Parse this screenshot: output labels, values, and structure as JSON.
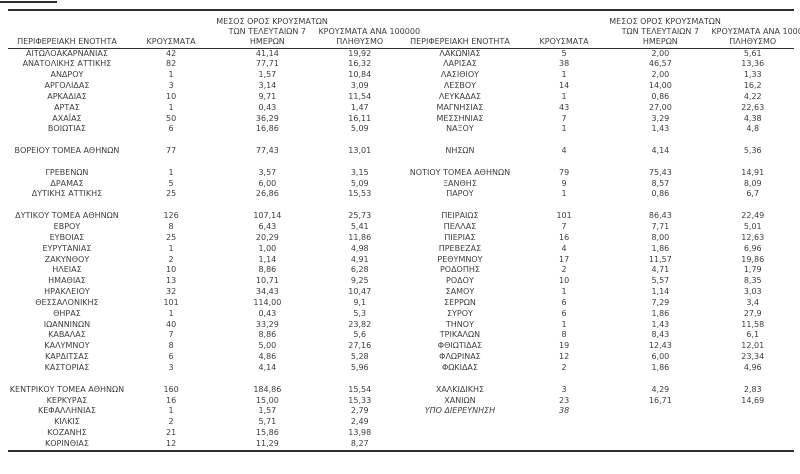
{
  "colors": {
    "background": "#ffffff",
    "text": "#3d3d3d",
    "line": "#2e2e2e"
  },
  "columns": {
    "region": "ΠΕΡΙΦΕΡΕΙΑΚΗ ΕΝΟΤΗΤΑ",
    "cases": "ΚΡΟΥΣΜΑΤΑ",
    "avg7_lines": [
      "ΜΕΣΟΣ ΟΡΟΣ ΚΡΟΥΣΜΑΤΩΝ",
      "ΤΩΝ ΤΕΛΕΥΤΑΙΩΝ 7",
      "ΗΜΕΡΩΝ"
    ],
    "per100k_lines": [
      "ΚΡΟΥΣΜΑΤΑ ΑΝΑ 100000",
      "ΠΛΗΘΥΣΜΟ"
    ]
  },
  "left_rows": [
    [
      "ΑΙΤΩΛΟΑΚΑΡΝΑΝΙΑΣ",
      "42",
      "41,14",
      "19,92"
    ],
    [
      "ΑΝΑΤΟΛΙΚΗΣ ΑΤΤΙΚΗΣ",
      "82",
      "77,71",
      "16,32"
    ],
    [
      "ΑΝΔΡΟΥ",
      "1",
      "1,57",
      "10,84"
    ],
    [
      "ΑΡΓΟΛΙΔΑΣ",
      "3",
      "3,14",
      "3,09"
    ],
    [
      "ΑΡΚΑΔΙΑΣ",
      "10",
      "9,71",
      "11,54"
    ],
    [
      "ΑΡΤΑΣ",
      "1",
      "0,43",
      "1,47"
    ],
    [
      "ΑΧΑΪΑΣ",
      "50",
      "36,29",
      "16,11"
    ],
    [
      "ΒΟΙΩΤΙΑΣ",
      "6",
      "16,86",
      "5,09"
    ],
    null,
    [
      "ΒΟΡΕΙΟΥ ΤΟΜΕΑ ΑΘΗΝΩΝ",
      "77",
      "77,43",
      "13,01"
    ],
    null,
    [
      "ΓΡΕΒΕΝΩΝ",
      "1",
      "3,57",
      "3,15"
    ],
    [
      "ΔΡΑΜΑΣ",
      "5",
      "6,00",
      "5,09"
    ],
    [
      "ΔΥΤΙΚΗΣ ΑΤΤΙΚΗΣ",
      "25",
      "26,86",
      "15,53"
    ],
    null,
    [
      "ΔΥΤΙΚΟΥ ΤΟΜΕΑ ΑΘΗΝΩΝ",
      "126",
      "107,14",
      "25,73"
    ],
    [
      "ΕΒΡΟΥ",
      "8",
      "6,43",
      "5,41"
    ],
    [
      "ΕΥΒΟΙΑΣ",
      "25",
      "20,29",
      "11,86"
    ],
    [
      "ΕΥΡΥΤΑΝΙΑΣ",
      "1",
      "1,00",
      "4,98"
    ],
    [
      "ΖΑΚΥΝΘΟΥ",
      "2",
      "1,14",
      "4,91"
    ],
    [
      "ΗΛΕΙΑΣ",
      "10",
      "8,86",
      "6,28"
    ],
    [
      "ΗΜΑΘΙΑΣ",
      "13",
      "10,71",
      "9,25"
    ],
    [
      "ΗΡΑΚΛΕΙΟΥ",
      "32",
      "34,43",
      "10,47"
    ],
    [
      "ΘΕΣΣΑΛΟΝΙΚΗΣ",
      "101",
      "114,00",
      "9,1"
    ],
    [
      "ΘΗΡΑΣ",
      "1",
      "0,43",
      "5,3"
    ],
    [
      "ΙΩΑΝΝΙΝΩΝ",
      "40",
      "33,29",
      "23,82"
    ],
    [
      "ΚΑΒΑΛΑΣ",
      "7",
      "8,86",
      "5,6"
    ],
    [
      "ΚΑΛΥΜΝΟΥ",
      "8",
      "5,00",
      "27,16"
    ],
    [
      "ΚΑΡΔΙΤΣΑΣ",
      "6",
      "4,86",
      "5,28"
    ],
    [
      "ΚΑΣΤΟΡΙΑΣ",
      "3",
      "4,14",
      "5,96"
    ],
    null,
    [
      "ΚΕΝΤΡΙΚΟΥ ΤΟΜΕΑ ΑΘΗΝΩΝ",
      "160",
      "184,86",
      "15,54"
    ],
    [
      "ΚΕΡΚΥΡΑΣ",
      "16",
      "15,00",
      "15,33"
    ],
    [
      "ΚΕΦΑΛΛΗΝΙΑΣ",
      "1",
      "1,57",
      "2,79"
    ],
    [
      "ΚΙΛΚΙΣ",
      "2",
      "5,71",
      "2,49"
    ],
    [
      "ΚΟΖΑΝΗΣ",
      "21",
      "15,86",
      "13,98"
    ],
    [
      "ΚΟΡΙΝΘΙΑΣ",
      "12",
      "11,29",
      "8,27"
    ]
  ],
  "right_rows": [
    [
      "ΛΑΚΩΝΙΑΣ",
      "5",
      "2,00",
      "5,61"
    ],
    [
      "ΛΑΡΙΣΑΣ",
      "38",
      "46,57",
      "13,36"
    ],
    [
      "ΛΑΣΙΘΙΟΥ",
      "1",
      "2,00",
      "1,33"
    ],
    [
      "ΛΕΣΒΟΥ",
      "14",
      "14,00",
      "16,2"
    ],
    [
      "ΛΕΥΚΑΔΑΣ",
      "1",
      "0,86",
      "4,22"
    ],
    [
      "ΜΑΓΝΗΣΙΑΣ",
      "43",
      "27,00",
      "22,63"
    ],
    [
      "ΜΕΣΣΗΝΙΑΣ",
      "7",
      "3,29",
      "4,38"
    ],
    [
      "ΝΑΞΟΥ",
      "1",
      "1,43",
      "4,8"
    ],
    null,
    [
      "ΝΗΣΩΝ",
      "4",
      "4,14",
      "5,36"
    ],
    null,
    [
      "ΝΟΤΙΟΥ ΤΟΜΕΑ ΑΘΗΝΩΝ",
      "79",
      "75,43",
      "14,91"
    ],
    [
      "ΞΑΝΘΗΣ",
      "9",
      "8,57",
      "8,09"
    ],
    [
      "ΠΑΡΟΥ",
      "1",
      "0,86",
      "6,7"
    ],
    null,
    [
      "ΠΕΙΡΑΙΩΣ",
      "101",
      "86,43",
      "22,49"
    ],
    [
      "ΠΕΛΛΑΣ",
      "7",
      "7,71",
      "5,01"
    ],
    [
      "ΠΙΕΡΙΑΣ",
      "16",
      "8,00",
      "12,63"
    ],
    [
      "ΠΡΕΒΕΖΑΣ",
      "4",
      "1,86",
      "6,96"
    ],
    [
      "ΡΕΘΥΜΝΟΥ",
      "17",
      "11,57",
      "19,86"
    ],
    [
      "ΡΟΔΟΠΗΣ",
      "2",
      "4,71",
      "1,79"
    ],
    [
      "ΡΟΔΟΥ",
      "10",
      "5,57",
      "8,35"
    ],
    [
      "ΣΑΜΟΥ",
      "1",
      "1,14",
      "3,03"
    ],
    [
      "ΣΕΡΡΩΝ",
      "6",
      "7,29",
      "3,4"
    ],
    [
      "ΣΥΡΟΥ",
      "6",
      "1,86",
      "27,9"
    ],
    [
      "ΤΗΝΟΥ",
      "1",
      "1,43",
      "11,58"
    ],
    [
      "ΤΡΙΚΑΛΩΝ",
      "8",
      "8,43",
      "6,1"
    ],
    [
      "ΦΘΙΩΤΙΔΑΣ",
      "19",
      "12,43",
      "12,01"
    ],
    [
      "ΦΛΩΡΙΝΑΣ",
      "12",
      "6,00",
      "23,34"
    ],
    [
      "ΦΩΚΙΔΑΣ",
      "2",
      "1,86",
      "4,96"
    ],
    null,
    [
      "ΧΑΛΚΙΔΙΚΗΣ",
      "3",
      "4,29",
      "2,83"
    ],
    [
      "ΧΑΝΙΩΝ",
      "23",
      "16,71",
      "14,69"
    ],
    [
      "ΥΠΟ ΔΙΕΡΕΥΝΗΣΗ",
      "38",
      "",
      "",
      "italic"
    ],
    null,
    null,
    null
  ]
}
